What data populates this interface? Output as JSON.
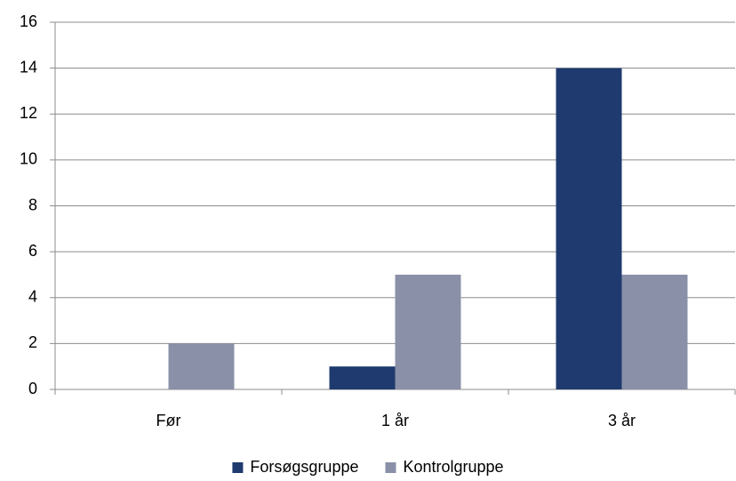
{
  "chart_data": {
    "type": "bar",
    "categories": [
      "Før",
      "1 år",
      "3 år"
    ],
    "series": [
      {
        "name": "Forsøgsgruppe",
        "color": "#1f3a6e",
        "values": [
          0,
          1,
          14
        ]
      },
      {
        "name": "Kontrolgruppe",
        "color": "#8a90a8",
        "values": [
          2,
          5,
          5
        ]
      }
    ],
    "ylim": [
      0,
      16
    ],
    "yticks": [
      0,
      2,
      4,
      6,
      8,
      10,
      12,
      14,
      16
    ],
    "grid": true,
    "legend": "bottom"
  }
}
